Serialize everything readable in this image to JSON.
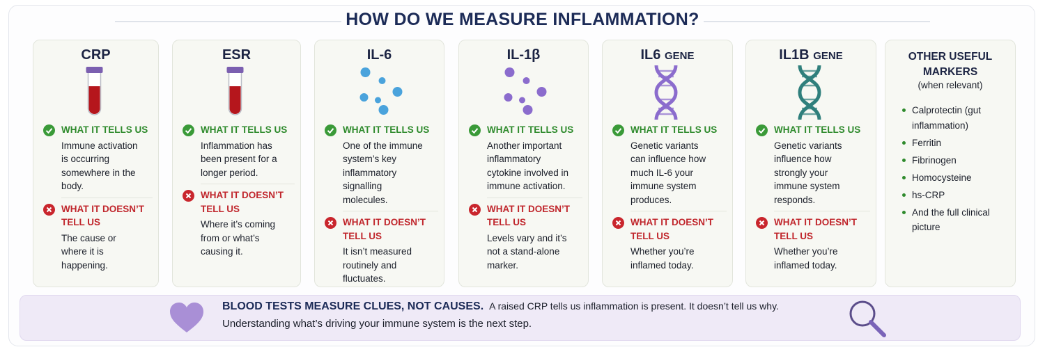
{
  "title": "HOW DO WE MEASURE INFLAMMATION?",
  "cards": [
    {
      "title": "CRP",
      "tells_label": "WHAT IT TELLS US",
      "tells": "Immune activation is occurring somewhere in the body.",
      "not_label": "WHAT IT DOESN’T TELL US",
      "not": "The cause or where it is happening."
    },
    {
      "title": "ESR",
      "tells_label": "WHAT IT TELLS US",
      "tells": "Inflammation has been present for a longer period.",
      "not_label": "WHAT IT DOESN’T TELL US",
      "not": "Where it’s coming from or what’s causing it."
    },
    {
      "title": "IL-6",
      "tells_label": "WHAT IT TELLS US",
      "tells": "One of the immune system’s key inflammatory signalling molecules.",
      "not_label": "WHAT IT DOESN’T TELL US",
      "not": "It isn’t measured routinely and fluctuates."
    },
    {
      "title": "IL-1β",
      "tells_label": "WHAT IT TELLS US",
      "tells": "Another important inflammatory cytokine involved in immune activation.",
      "not_label": "WHAT IT DOESN’T TELL US",
      "not": "Levels vary and it’s not a stand-alone marker."
    },
    {
      "title": "IL6",
      "title_suffix": "GENE",
      "tells_label": "WHAT IT TELLS US",
      "tells": "Genetic variants can influence how much IL-6 your immune system produces.",
      "not_label": "WHAT IT DOESN’T TELL US",
      "not": "Whether you’re inflamed today."
    },
    {
      "title": "IL1B",
      "title_suffix": "GENE",
      "tells_label": "WHAT IT TELLS US",
      "tells": "Genetic variants influence how strongly your immune system responds.",
      "not_label": "WHAT IT DOESN’T TELL US",
      "not": "Whether you’re inflamed today."
    }
  ],
  "other": {
    "title": "OTHER USEFUL MARKERS",
    "subtitle": "(when relevant)",
    "items": [
      "Calprotectin (gut inflammation)",
      "Ferritin",
      "Fibrinogen",
      "Homocysteine",
      "hs-CRP",
      "And the full clinical picture"
    ]
  },
  "footer": {
    "heading": "BLOOD TESTS MEASURE CLUES, NOT CAUSES.",
    "text": "A raised CRP tells us inflammation is present. It doesn’t tell us why.",
    "text2": "Understanding what’s driving your immune system is the next step."
  }
}
